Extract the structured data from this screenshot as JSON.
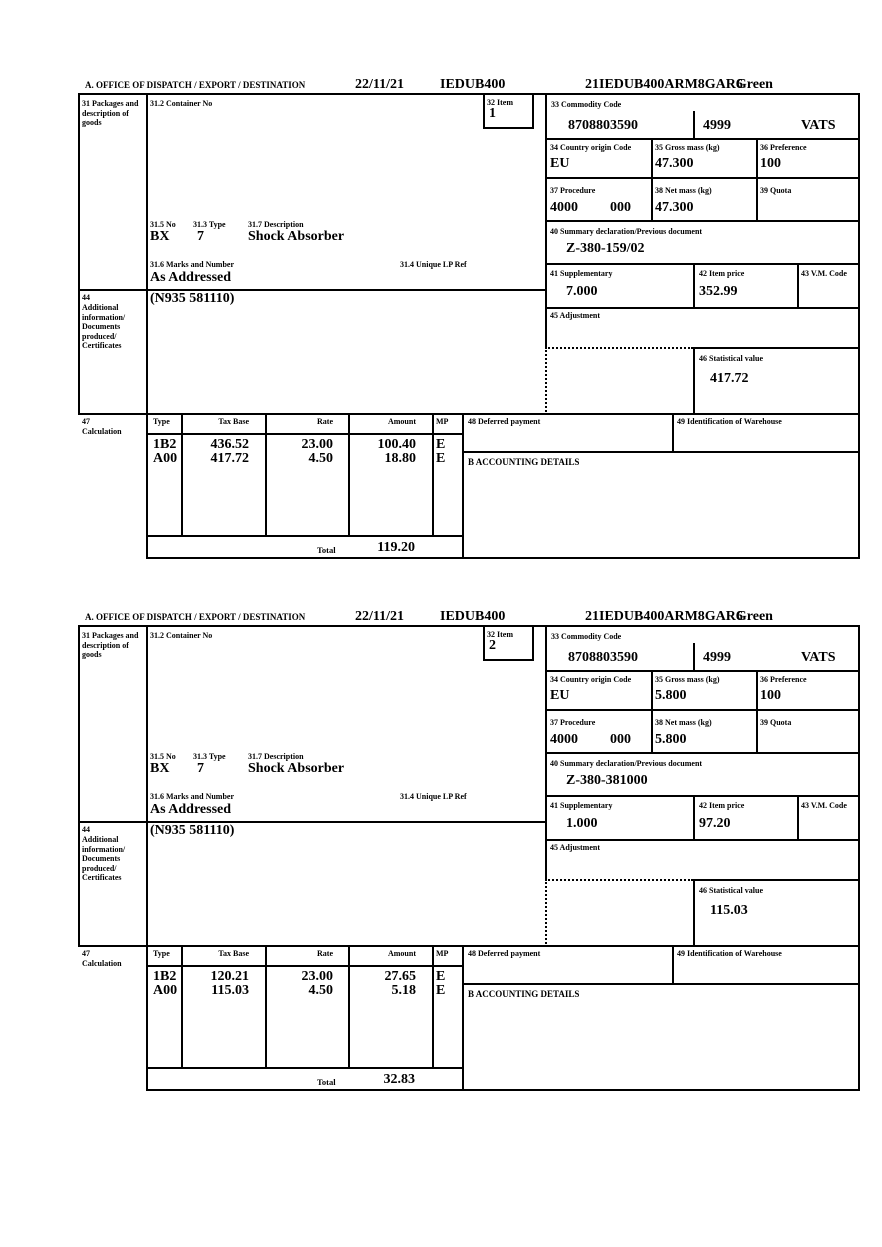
{
  "colors": {
    "ink": "#000000",
    "paper": "#ffffff"
  },
  "header": {
    "date": "22/11/21",
    "office": "IEDUB400",
    "mrn": "21IEDUB400ARM8GAR6",
    "routing": "Green"
  },
  "labels": {
    "office_header": "A.  OFFICE OF DISPATCH / EXPORT / DESTINATION",
    "b31": "31 Packages and description of goods",
    "b31_2": "31.2 Container No",
    "b32": "32 Item",
    "b33": "33 Commodity Code",
    "b34": "34 Country origin Code",
    "b35": "35 Gross mass (kg)",
    "b36": "36 Preference",
    "b37": "37 Procedure",
    "b38": "38 Net mass (kg)",
    "b39": "39 Quota",
    "b40": "40 Summary declaration/Previous document",
    "b41": "41 Supplementary",
    "b42": "42 Item price",
    "b43": "43 V.M. Code",
    "b44_no": "44",
    "b44_text": "Additional information/ Documents produced/ Certificates",
    "b31_5": "31.5 No",
    "b31_3": "31.3 Type",
    "b31_7": "31.7 Description",
    "b31_6": "31.6 Marks and Number",
    "b31_4": "31.4 Unique LP Ref",
    "b45": "45 Adjustment",
    "b46": "46 Statistical value",
    "b47_no": "47",
    "b47_text": "Calculation",
    "col_type": "Type",
    "col_tax_base": "Tax Base",
    "col_rate": "Rate",
    "col_amount": "Amount",
    "col_mp": "MP",
    "total": "Total",
    "b48": "48 Deferred payment",
    "b49": "49 Identification of Warehouse",
    "b_accounting": "B ACCOUNTING DETAILS"
  },
  "sections": [
    {
      "item_no": "1",
      "commodity_code": "8708803590",
      "commodity_code_2": "4999",
      "tax_type": "VATS",
      "origin": "EU",
      "gross_mass": "47.300",
      "preference": "100",
      "procedure": "4000",
      "procedure_ext": "000",
      "net_mass": "47.300",
      "previous_document": "Z-380-159/02",
      "supplementary": "7.000",
      "item_price": "352.99",
      "package_no": "BX",
      "package_type": "7",
      "description": "Shock Absorber",
      "marks": "As Addressed",
      "additional_info": "(N935 581110)",
      "statistical_value": "417.72",
      "calc_rows": [
        {
          "type": "1B2",
          "tax_base": "436.52",
          "rate": "23.00",
          "amount": "100.40",
          "mp": "E"
        },
        {
          "type": "A00",
          "tax_base": "417.72",
          "rate": "4.50",
          "amount": "18.80",
          "mp": "E"
        }
      ],
      "total": "119.20"
    },
    {
      "item_no": "2",
      "commodity_code": "8708803590",
      "commodity_code_2": "4999",
      "tax_type": "VATS",
      "origin": "EU",
      "gross_mass": "5.800",
      "preference": "100",
      "procedure": "4000",
      "procedure_ext": "000",
      "net_mass": "5.800",
      "previous_document": "Z-380-381000",
      "supplementary": "1.000",
      "item_price": "97.20",
      "package_no": "BX",
      "package_type": "7",
      "description": "Shock Absorber",
      "marks": "As Addressed",
      "additional_info": "(N935 581110)",
      "statistical_value": "115.03",
      "calc_rows": [
        {
          "type": "1B2",
          "tax_base": "120.21",
          "rate": "23.00",
          "amount": "27.65",
          "mp": "E"
        },
        {
          "type": "A00",
          "tax_base": "115.03",
          "rate": "4.50",
          "amount": "5.18",
          "mp": "E"
        }
      ],
      "total": "32.83"
    }
  ]
}
